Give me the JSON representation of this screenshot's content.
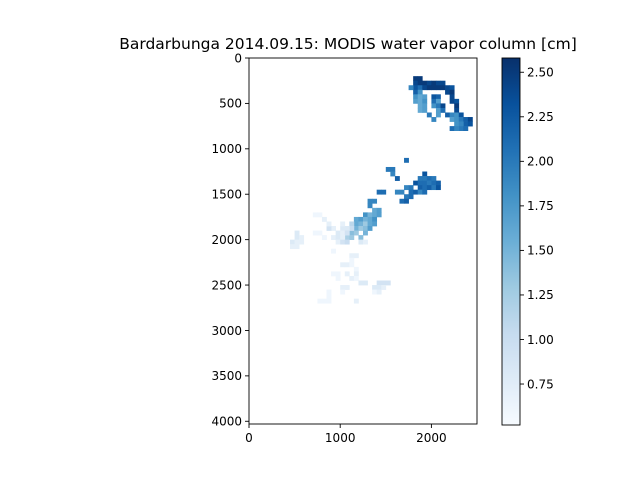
{
  "chart_data": {
    "type": "heatmap",
    "title": "Bardarbunga 2014.09.15: MODIS water vapor column [cm]",
    "xlabel": "",
    "ylabel": "",
    "xlim": [
      0,
      2500
    ],
    "ylim": [
      4030,
      0
    ],
    "x_ticks": [
      0,
      1000,
      2000
    ],
    "x_tick_labels": [
      "0",
      "1000",
      "2000"
    ],
    "y_ticks": [
      0,
      500,
      1000,
      1500,
      2000,
      2500,
      3000,
      3500,
      4000
    ],
    "y_tick_labels": [
      "0",
      "500",
      "1000",
      "1500",
      "2000",
      "2500",
      "3000",
      "3500",
      "4000"
    ],
    "colormap": "Blues",
    "colorbar": {
      "range": [
        0.52,
        2.58
      ],
      "ticks": [
        0.75,
        1.0,
        1.25,
        1.5,
        1.75,
        2.0,
        2.25,
        2.5
      ],
      "tick_labels": [
        "0.75",
        "1.00",
        "1.25",
        "1.50",
        "1.75",
        "2.00",
        "2.25",
        "2.50"
      ]
    },
    "cell_size": 50,
    "cells": [
      [
        1800,
        200,
        2.5
      ],
      [
        1850,
        200,
        2.5
      ],
      [
        1800,
        250,
        2.4
      ],
      [
        1850,
        250,
        2.5
      ],
      [
        1900,
        250,
        2.5
      ],
      [
        1950,
        250,
        2.4
      ],
      [
        2000,
        250,
        2.5
      ],
      [
        2050,
        250,
        2.4
      ],
      [
        2100,
        250,
        2.4
      ],
      [
        1800,
        300,
        2.3
      ],
      [
        1850,
        300,
        2.1
      ],
      [
        1900,
        300,
        2.4
      ],
      [
        1950,
        300,
        2.5
      ],
      [
        2000,
        300,
        2.5
      ],
      [
        2050,
        300,
        2.5
      ],
      [
        2100,
        300,
        2.5
      ],
      [
        2150,
        300,
        2.4
      ],
      [
        2200,
        300,
        2.3
      ],
      [
        1750,
        300,
        1.9
      ],
      [
        1800,
        350,
        2.2
      ],
      [
        1850,
        350,
        1.8
      ],
      [
        2150,
        350,
        2.4
      ],
      [
        2200,
        350,
        2.5
      ],
      [
        1800,
        400,
        1.8
      ],
      [
        1850,
        400,
        1.6
      ],
      [
        1900,
        400,
        1.7
      ],
      [
        1800,
        450,
        1.7
      ],
      [
        1850,
        450,
        1.6
      ],
      [
        1900,
        450,
        1.8
      ],
      [
        2000,
        400,
        2.3
      ],
      [
        2050,
        400,
        2.2
      ],
      [
        2200,
        400,
        2.4
      ],
      [
        2000,
        450,
        2.1
      ],
      [
        2050,
        450,
        1.7
      ],
      [
        2200,
        450,
        2.4
      ],
      [
        2250,
        450,
        2.3
      ],
      [
        1850,
        500,
        1.6
      ],
      [
        1900,
        500,
        1.7
      ],
      [
        2000,
        500,
        1.8
      ],
      [
        2050,
        500,
        2.0
      ],
      [
        2100,
        500,
        2.4
      ],
      [
        2250,
        500,
        2.5
      ],
      [
        1850,
        550,
        1.6
      ],
      [
        1900,
        550,
        1.7
      ],
      [
        2050,
        550,
        1.7
      ],
      [
        2100,
        550,
        2.1
      ],
      [
        2250,
        550,
        2.4
      ],
      [
        2050,
        600,
        1.7
      ],
      [
        1950,
        600,
        2.0
      ],
      [
        2150,
        600,
        2.2
      ],
      [
        2200,
        600,
        1.9
      ],
      [
        2250,
        600,
        1.8
      ],
      [
        2300,
        600,
        2.3
      ],
      [
        2000,
        650,
        1.9
      ],
      [
        2200,
        650,
        1.7
      ],
      [
        2250,
        650,
        1.8
      ],
      [
        2300,
        650,
        2.0
      ],
      [
        2350,
        650,
        2.2
      ],
      [
        2400,
        650,
        2.4
      ],
      [
        2350,
        700,
        2.2
      ],
      [
        2400,
        700,
        2.3
      ],
      [
        2250,
        700,
        1.8
      ],
      [
        2300,
        700,
        1.9
      ],
      [
        2300,
        750,
        2.0
      ],
      [
        2350,
        750,
        2.1
      ],
      [
        2200,
        750,
        2.1
      ],
      [
        2250,
        750,
        1.9
      ],
      [
        1700,
        1100,
        2.1
      ],
      [
        1500,
        1200,
        2.0
      ],
      [
        1550,
        1200,
        2.0
      ],
      [
        1550,
        1250,
        1.9
      ],
      [
        1600,
        1300,
        2.2
      ],
      [
        1900,
        1250,
        2.3
      ],
      [
        1850,
        1300,
        2.0
      ],
      [
        1900,
        1300,
        2.0
      ],
      [
        1950,
        1300,
        2.1
      ],
      [
        2000,
        1300,
        2.0
      ],
      [
        1800,
        1350,
        2.3
      ],
      [
        1850,
        1350,
        2.1
      ],
      [
        1900,
        1350,
        2.1
      ],
      [
        1950,
        1350,
        2.0
      ],
      [
        2000,
        1350,
        2.1
      ],
      [
        2050,
        1350,
        2.2
      ],
      [
        1850,
        1400,
        2.2
      ],
      [
        1900,
        1400,
        2.1
      ],
      [
        1950,
        1400,
        2.2
      ],
      [
        2000,
        1400,
        2.0
      ],
      [
        2050,
        1400,
        2.3
      ],
      [
        1700,
        1400,
        1.9
      ],
      [
        1750,
        1400,
        2.0
      ],
      [
        1750,
        1450,
        2.1
      ],
      [
        1800,
        1450,
        2.2
      ],
      [
        1850,
        1450,
        1.9
      ],
      [
        1900,
        1450,
        2.1
      ],
      [
        1600,
        1450,
        1.9
      ],
      [
        1650,
        1450,
        1.9
      ],
      [
        1400,
        1450,
        2.1
      ],
      [
        1450,
        1450,
        2.1
      ],
      [
        1700,
        1500,
        2.0
      ],
      [
        1750,
        1500,
        2.1
      ],
      [
        1650,
        1550,
        2.1
      ],
      [
        1700,
        1550,
        2.2
      ],
      [
        1300,
        1550,
        1.9
      ],
      [
        1350,
        1550,
        1.9
      ],
      [
        1300,
        1600,
        1.9
      ],
      [
        1350,
        1650,
        1.6
      ],
      [
        1400,
        1650,
        1.7
      ],
      [
        1250,
        1700,
        1.8
      ],
      [
        1300,
        1700,
        1.5
      ],
      [
        1350,
        1700,
        1.6
      ],
      [
        1400,
        1700,
        1.7
      ],
      [
        1150,
        1750,
        1.6
      ],
      [
        1200,
        1750,
        1.7
      ],
      [
        1250,
        1750,
        1.5
      ],
      [
        1300,
        1750,
        1.6
      ],
      [
        1350,
        1750,
        1.8
      ],
      [
        1150,
        1800,
        1.6
      ],
      [
        1200,
        1800,
        1.5
      ],
      [
        1250,
        1800,
        1.3
      ],
      [
        1300,
        1800,
        1.6
      ],
      [
        1350,
        1800,
        1.7
      ],
      [
        1150,
        1850,
        1.5
      ],
      [
        1200,
        1850,
        1.3
      ],
      [
        1250,
        1850,
        1.4
      ],
      [
        1300,
        1850,
        1.7
      ],
      [
        1100,
        1900,
        1.4
      ],
      [
        1150,
        1900,
        1.3
      ],
      [
        1250,
        1900,
        1.5
      ],
      [
        1050,
        1950,
        1.2
      ],
      [
        1100,
        1950,
        1.3
      ],
      [
        1200,
        1950,
        1.4
      ],
      [
        1100,
        1800,
        1.1
      ],
      [
        1100,
        1850,
        1.0
      ],
      [
        1000,
        1850,
        0.8
      ],
      [
        1050,
        1850,
        0.8
      ],
      [
        1000,
        1800,
        0.7
      ],
      [
        900,
        1850,
        0.7
      ],
      [
        850,
        1850,
        0.9
      ],
      [
        950,
        1900,
        0.8
      ],
      [
        1000,
        1900,
        0.7
      ],
      [
        1050,
        1900,
        0.9
      ],
      [
        900,
        1950,
        0.7
      ],
      [
        950,
        1950,
        0.8
      ],
      [
        1000,
        1950,
        0.7
      ],
      [
        950,
        2000,
        0.7
      ],
      [
        1000,
        2000,
        0.9
      ],
      [
        1050,
        2000,
        1.0
      ],
      [
        1200,
        2000,
        0.8
      ],
      [
        1250,
        2000,
        0.7
      ],
      [
        700,
        1700,
        0.6
      ],
      [
        750,
        1700,
        0.6
      ],
      [
        800,
        1750,
        0.7
      ],
      [
        850,
        1800,
        0.7
      ],
      [
        700,
        1900,
        0.6
      ],
      [
        750,
        1900,
        0.6
      ],
      [
        800,
        1950,
        0.6
      ],
      [
        500,
        1900,
        0.8
      ],
      [
        500,
        1950,
        0.8
      ],
      [
        550,
        1950,
        0.7
      ],
      [
        450,
        2000,
        0.8
      ],
      [
        500,
        2000,
        0.7
      ],
      [
        550,
        2000,
        0.7
      ],
      [
        450,
        2050,
        0.7
      ],
      [
        500,
        2050,
        0.7
      ],
      [
        900,
        2100,
        0.6
      ],
      [
        1100,
        2150,
        0.7
      ],
      [
        1150,
        2150,
        0.7
      ],
      [
        1100,
        2200,
        0.6
      ],
      [
        1000,
        2250,
        0.7
      ],
      [
        1050,
        2250,
        0.7
      ],
      [
        1100,
        2250,
        0.6
      ],
      [
        1150,
        2300,
        0.6
      ],
      [
        1050,
        2350,
        0.7
      ],
      [
        1150,
        2350,
        0.7
      ],
      [
        900,
        2350,
        0.6
      ],
      [
        950,
        2350,
        0.6
      ],
      [
        950,
        2400,
        0.6
      ],
      [
        1100,
        2400,
        0.7
      ],
      [
        1150,
        2400,
        0.6
      ],
      [
        1200,
        2450,
        0.8
      ],
      [
        1250,
        2450,
        0.8
      ],
      [
        1000,
        2500,
        0.7
      ],
      [
        1050,
        2500,
        0.7
      ],
      [
        1000,
        2550,
        0.6
      ],
      [
        850,
        2550,
        0.6
      ],
      [
        1400,
        2450,
        0.9
      ],
      [
        1450,
        2450,
        0.9
      ],
      [
        1500,
        2450,
        0.9
      ],
      [
        1350,
        2500,
        0.8
      ],
      [
        1400,
        2500,
        0.8
      ],
      [
        1450,
        2500,
        0.7
      ],
      [
        1350,
        2550,
        0.6
      ],
      [
        1400,
        2550,
        0.7
      ],
      [
        800,
        2650,
        0.6
      ],
      [
        850,
        2650,
        0.6
      ],
      [
        750,
        2650,
        0.6
      ],
      [
        1150,
        2650,
        0.7
      ],
      [
        850,
        2600,
        0.6
      ]
    ]
  }
}
